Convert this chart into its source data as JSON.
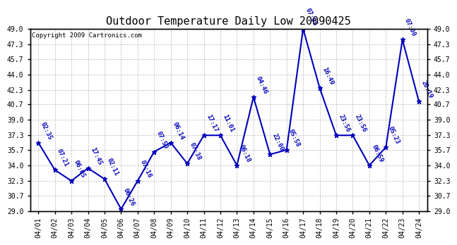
{
  "title": "Outdoor Temperature Daily Low 20090425",
  "copyright": "Copyright 2009 Cartronics.com",
  "dates": [
    "04/01",
    "04/02",
    "04/03",
    "04/04",
    "04/05",
    "04/06",
    "04/07",
    "04/08",
    "04/09",
    "04/10",
    "04/11",
    "04/12",
    "04/13",
    "04/14",
    "04/15",
    "04/16",
    "04/17",
    "04/18",
    "04/19",
    "04/20",
    "04/21",
    "04/22",
    "04/23",
    "04/24"
  ],
  "values": [
    36.5,
    33.5,
    32.3,
    33.7,
    32.5,
    29.2,
    32.3,
    35.5,
    36.5,
    34.2,
    37.3,
    37.3,
    34.0,
    41.5,
    35.2,
    35.7,
    49.0,
    42.5,
    37.3,
    37.3,
    34.0,
    36.0,
    47.8,
    41.0
  ],
  "annotations": [
    "02:35",
    "07:21",
    "06:05",
    "17:45",
    "02:11",
    "06:26",
    "07:16",
    "07:50",
    "06:14",
    "07:38",
    "17:17",
    "11:01",
    "06:18",
    "04:46",
    "22:00",
    "05:58",
    "07:05",
    "16:49",
    "23:56",
    "23:56",
    "06:59",
    "05:23",
    "07:00",
    "20:19"
  ],
  "ylim": [
    29.0,
    49.0
  ],
  "yticks": [
    29.0,
    30.7,
    32.3,
    34.0,
    35.7,
    37.3,
    39.0,
    40.7,
    42.3,
    44.0,
    45.7,
    47.3,
    49.0
  ],
  "line_color": "#0000bb",
  "grid_color": "#bbbbbb",
  "bg_color": "#ffffff",
  "title_fontsize": 11,
  "annot_fontsize": 6.5,
  "copyright_fontsize": 6.5
}
